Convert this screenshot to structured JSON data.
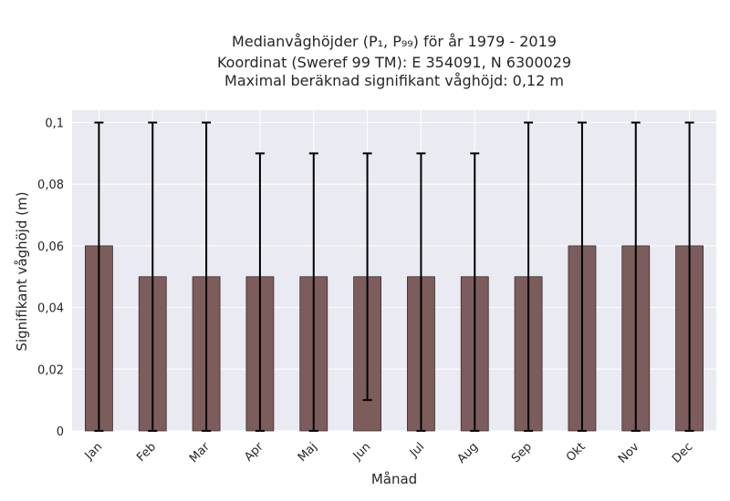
{
  "chart_data": {
    "type": "bar",
    "title_lines": [
      "Medianvåghöjder (P₁, P₉₉) för år 1979 - 2019",
      "Koordinat (Sweref 99 TM): E 354091, N 6300029",
      "Maximal beräknad signifikant våghöjd: 0,12 m"
    ],
    "xlabel": "Månad",
    "ylabel": "Signifikant våghöjd (m)",
    "categories": [
      "Jan",
      "Feb",
      "Mar",
      "Apr",
      "Maj",
      "Jun",
      "Jul",
      "Aug",
      "Sep",
      "Okt",
      "Nov",
      "Dec"
    ],
    "values": [
      0.06,
      0.05,
      0.05,
      0.05,
      0.05,
      0.05,
      0.05,
      0.05,
      0.05,
      0.06,
      0.06,
      0.06
    ],
    "error_low": [
      0,
      0,
      0,
      0,
      0,
      0.01,
      0,
      0,
      0,
      0,
      0,
      0
    ],
    "error_high": [
      0.1,
      0.1,
      0.1,
      0.09,
      0.09,
      0.09,
      0.09,
      0.09,
      0.1,
      0.1,
      0.1,
      0.1
    ],
    "ylim": [
      0,
      0.1
    ],
    "yticks": [
      0,
      0.02,
      0.04,
      0.06,
      0.08,
      0.1
    ],
    "ytick_labels": [
      "0",
      "0,02",
      "0,04",
      "0,06",
      "0,08",
      "0,1"
    ],
    "grid": true,
    "colors": {
      "bar": "#7d5c5c",
      "bar_edge": "#3a2a2a",
      "error_bar": "#000000",
      "plot_background": "#eaeaf2",
      "grid": "#ffffff"
    }
  }
}
